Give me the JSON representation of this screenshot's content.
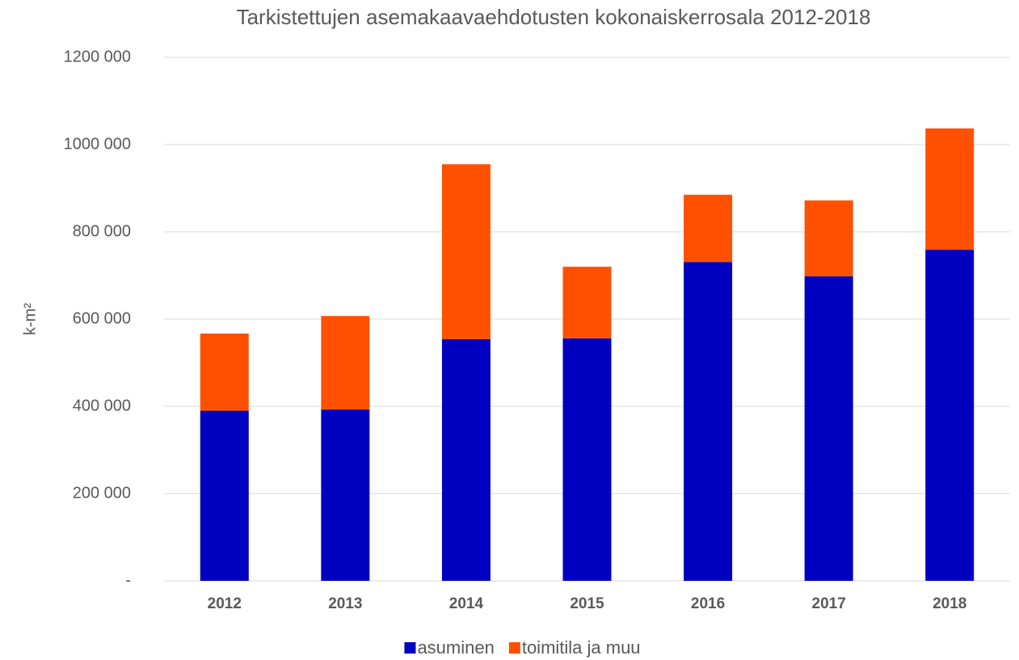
{
  "chart_data": {
    "type": "stacked_bar",
    "title": "Tarkistettujen asemakaavaehdotusten kokonaiskerrosala 2012-2018",
    "y_label": "k-m²",
    "categories": [
      "2012",
      "2013",
      "2014",
      "2015",
      "2016",
      "2017",
      "2018"
    ],
    "series": [
      {
        "name": "asuminen",
        "color": "#0000c0",
        "values": [
          390000,
          393000,
          554000,
          556000,
          731000,
          698000,
          759000
        ]
      },
      {
        "name": "toimitila ja muu",
        "color": "#ff5000",
        "values": [
          177000,
          214000,
          401000,
          164000,
          154000,
          174000,
          278000
        ]
      }
    ],
    "ylim": [
      0,
      1200000
    ],
    "yticks": [
      {
        "value": 0,
        "label": "-"
      },
      {
        "value": 200000,
        "label": "200 000"
      },
      {
        "value": 400000,
        "label": "400 000"
      },
      {
        "value": 600000,
        "label": "600 000"
      },
      {
        "value": 800000,
        "label": "800 000"
      },
      {
        "value": 1000000,
        "label": "1000 000"
      },
      {
        "value": 1200000,
        "label": "1200 000"
      }
    ],
    "grid": true,
    "legend": "bottom"
  }
}
